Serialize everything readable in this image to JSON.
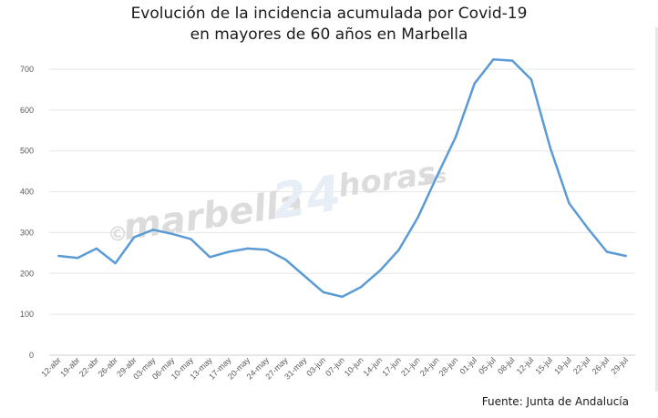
{
  "title_line1": "Evolución de la incidencia acumulada por Covid-19",
  "title_line2": "en mayores de 60 años en Marbella",
  "source": "Fuente: Junta de Andalucía",
  "watermark": {
    "copyright": "©",
    "part1": "marbella",
    "part2": "24",
    "part3": "horas",
    "part4": ".es"
  },
  "chart_data": {
    "type": "line",
    "title": "Evolución de la incidencia acumulada por Covid-19 en mayores de 60 años en Marbella",
    "xlabel": "",
    "ylabel": "",
    "ylim": [
      0,
      700
    ],
    "yticks": [
      0,
      100,
      200,
      300,
      400,
      500,
      600,
      700
    ],
    "grid": true,
    "legend": "none",
    "color": "#5b9bd5",
    "categories": [
      "12-abr",
      "19-abr",
      "22-abr",
      "26-abr",
      "29-abr",
      "03-may",
      "06-may",
      "10-may",
      "13-may",
      "17-may",
      "20-may",
      "24-may",
      "27-may",
      "31-may",
      "03-jun",
      "07-jun",
      "10-jun",
      "14-jun",
      "17-jun",
      "21-jun",
      "24-jun",
      "28-jun",
      "01-jul",
      "05-jul",
      "08-jul",
      "12-jul",
      "15-jul",
      "19-jul",
      "22-jul",
      "26-jul",
      "29-jul"
    ],
    "series": [
      {
        "values": [
          243,
          238,
          261,
          225,
          289,
          307,
          297,
          284,
          240,
          253,
          261,
          258,
          234,
          194,
          154,
          143,
          167,
          207,
          258,
          337,
          437,
          534,
          665,
          724,
          721,
          675,
          508,
          372,
          310,
          253,
          243
        ]
      }
    ]
  }
}
